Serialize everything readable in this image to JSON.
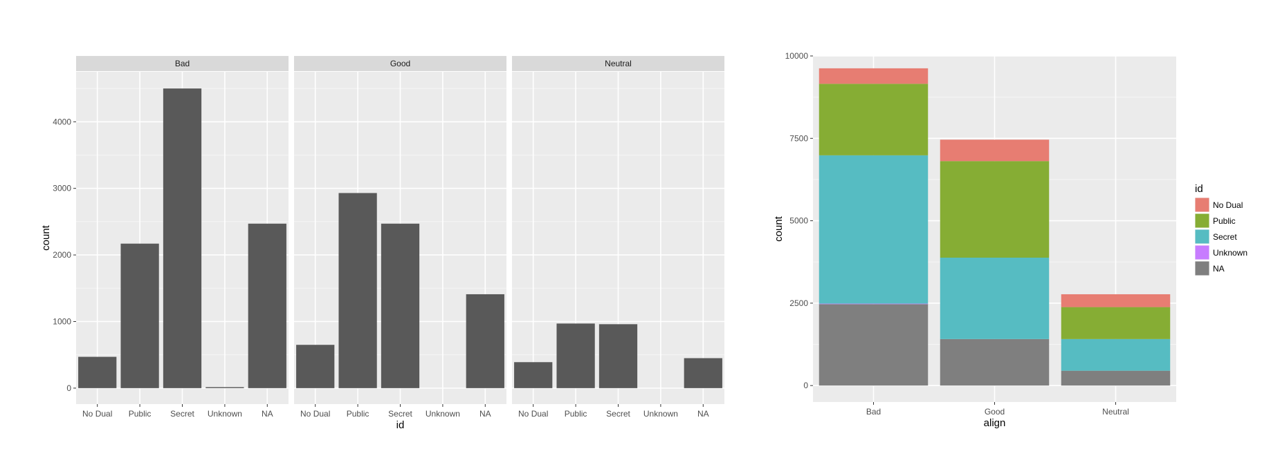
{
  "chart_data": [
    {
      "type": "bar",
      "facet_var": "align",
      "facets": [
        "Bad",
        "Good",
        "Neutral"
      ],
      "categories": [
        "No Dual",
        "Public",
        "Secret",
        "Unknown",
        "NA"
      ],
      "values": {
        "Bad": [
          470,
          2170,
          4500,
          15,
          2470
        ],
        "Good": [
          650,
          2930,
          2470,
          0,
          1410
        ],
        "Neutral": [
          390,
          970,
          960,
          0,
          450
        ]
      },
      "xlabel": "id",
      "ylabel": "count",
      "ylim": [
        -240,
        4750
      ],
      "yticks": [
        0,
        1000,
        2000,
        3000,
        4000
      ],
      "bar_color": "#595959",
      "panel_bg": "#ebebeb",
      "strip_bg": "#d9d9d9",
      "grid": true
    },
    {
      "type": "bar",
      "stacked": true,
      "categories": [
        "Bad",
        "Good",
        "Neutral"
      ],
      "series": [
        {
          "name": "NA",
          "color": "#7f7f7f",
          "values": [
            2470,
            1410,
            450
          ]
        },
        {
          "name": "Unknown",
          "color": "#c77cff",
          "values": [
            15,
            0,
            0
          ]
        },
        {
          "name": "Secret",
          "color": "#56bcc2",
          "values": [
            4500,
            2470,
            960
          ]
        },
        {
          "name": "Public",
          "color": "#86ad34",
          "values": [
            2170,
            2930,
            970
          ]
        },
        {
          "name": "No Dual",
          "color": "#e77d72",
          "values": [
            470,
            650,
            390
          ]
        }
      ],
      "legend_title": "id",
      "legend_order": [
        "No Dual",
        "Public",
        "Secret",
        "Unknown",
        "NA"
      ],
      "legend_position": "right",
      "xlabel": "align",
      "ylabel": "count",
      "ylim": [
        -500,
        10000
      ],
      "yticks": [
        0,
        2500,
        5000,
        7500,
        10000
      ],
      "panel_bg": "#ebebeb",
      "grid": true
    }
  ]
}
